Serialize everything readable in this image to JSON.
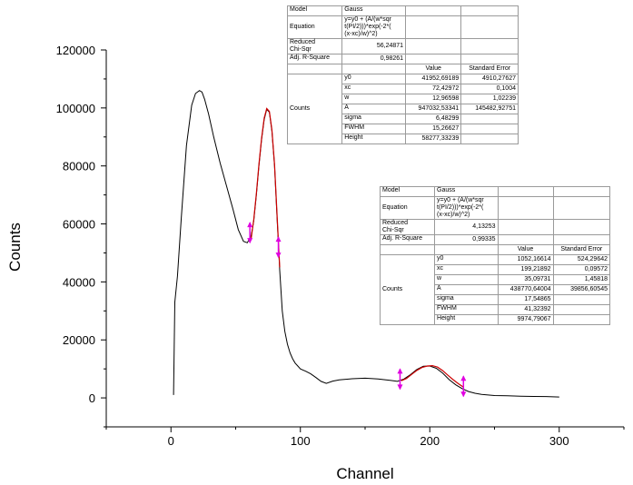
{
  "chart_data": {
    "type": "line",
    "xlabel": "Channel",
    "ylabel": "Counts",
    "xlim": [
      -50,
      350
    ],
    "ylim": [
      -10000,
      120000
    ],
    "x_ticks": [
      0,
      100,
      200,
      300
    ],
    "y_ticks": [
      0,
      20000,
      40000,
      60000,
      80000,
      100000,
      120000
    ],
    "series": [
      {
        "color": "#000000",
        "x": [
          2,
          3,
          5,
          8,
          12,
          16,
          19,
          22,
          24,
          26,
          29,
          33,
          38,
          43,
          48,
          52,
          56,
          59,
          62,
          64,
          66,
          68,
          70,
          72,
          74,
          76,
          78,
          80,
          82,
          84,
          86,
          88,
          90,
          92,
          94,
          96,
          98,
          100,
          104,
          108,
          112,
          116,
          120,
          125,
          130,
          140,
          150,
          160,
          170,
          175,
          180,
          185,
          190,
          195,
          200,
          205,
          210,
          215,
          220,
          225,
          230,
          235,
          240,
          250,
          260,
          270,
          280,
          290,
          300
        ],
        "y": [
          1000,
          33000,
          42000,
          62000,
          87000,
          101000,
          105000,
          106000,
          105500,
          103000,
          98000,
          90000,
          81000,
          73000,
          65000,
          58000,
          54000,
          53500,
          56000,
          61000,
          70000,
          80000,
          89000,
          96000,
          99500,
          98500,
          92000,
          80000,
          62000,
          44000,
          30000,
          23000,
          18500,
          15500,
          13500,
          12000,
          11000,
          10000,
          9200,
          8300,
          7000,
          5700,
          5000,
          5800,
          6200,
          6600,
          6800,
          6500,
          6000,
          5700,
          6500,
          8000,
          9800,
          10900,
          11000,
          10200,
          8500,
          6300,
          4500,
          3200,
          2200,
          1600,
          1200,
          800,
          700,
          600,
          500,
          450,
          300
        ]
      },
      {
        "color": "#cc0000",
        "x": [
          62,
          64,
          66,
          68,
          70,
          72,
          74,
          76,
          78,
          80,
          82,
          84
        ],
        "y": [
          55000,
          61500,
          70500,
          80500,
          89500,
          96500,
          99800,
          98800,
          92500,
          80500,
          63000,
          45000
        ]
      },
      {
        "color": "#cc0000",
        "x": [
          178,
          182,
          186,
          190,
          194,
          198,
          202,
          206,
          210,
          214,
          218,
          222,
          226
        ],
        "y": [
          5900,
          6700,
          8100,
          9500,
          10500,
          11000,
          11100,
          10600,
          9400,
          7800,
          6300,
          4900,
          3700
        ]
      }
    ],
    "fit_markers": [
      {
        "x": 61,
        "y": 57000
      },
      {
        "x": 83,
        "y": 52000
      },
      {
        "x": 177,
        "y": 6500
      },
      {
        "x": 226,
        "y": 4000
      }
    ]
  },
  "fit_table_1": {
    "model_label": "Model",
    "model_value": "Gauss",
    "equation_label": "Equation",
    "equation_value": "y=y0 + (A/(w*sqr\nt(PI/2)))*exp(-2*(\n(x-xc)/w)^2)",
    "chi_label": "Reduced\nChi-Sqr",
    "chi_value": "56,24871",
    "r2_label": "Adj. R-Square",
    "r2_value": "0,98261",
    "col_value": "Value",
    "col_error": "Standard Error",
    "group_label": "Counts",
    "params": [
      {
        "name": "y0",
        "value": "41952,69189",
        "error": "4910,27627"
      },
      {
        "name": "xc",
        "value": "72,42972",
        "error": "0,1004"
      },
      {
        "name": "w",
        "value": "12,96598",
        "error": "1,02239"
      },
      {
        "name": "A",
        "value": "947032,53341",
        "error": "145482,92751"
      },
      {
        "name": "sigma",
        "value": "6,48299",
        "error": ""
      },
      {
        "name": "FWHM",
        "value": "15,26627",
        "error": ""
      },
      {
        "name": "Height",
        "value": "58277,33239",
        "error": ""
      }
    ]
  },
  "fit_table_2": {
    "model_label": "Model",
    "model_value": "Gauss",
    "equation_label": "Equation",
    "equation_value": "y=y0 + (A/(w*sqr\nt(PI/2)))*exp(-2*(\n(x-xc)/w)^2)",
    "chi_label": "Reduced\nChi-Sqr",
    "chi_value": "4,13253",
    "r2_label": "Adj. R-Square",
    "r2_value": "0,99335",
    "col_value": "Value",
    "col_error": "Standard Error",
    "group_label": "Counts",
    "params": [
      {
        "name": "y0",
        "value": "1052,16614",
        "error": "524,29642"
      },
      {
        "name": "xc",
        "value": "199,21892",
        "error": "0,09572"
      },
      {
        "name": "w",
        "value": "35,09731",
        "error": "1,45818"
      },
      {
        "name": "A",
        "value": "438770,64004",
        "error": "39856,60545"
      },
      {
        "name": "sigma",
        "value": "17,54865",
        "error": ""
      },
      {
        "name": "FWHM",
        "value": "41,32392",
        "error": ""
      },
      {
        "name": "Height",
        "value": "9974,79067",
        "error": ""
      }
    ]
  }
}
